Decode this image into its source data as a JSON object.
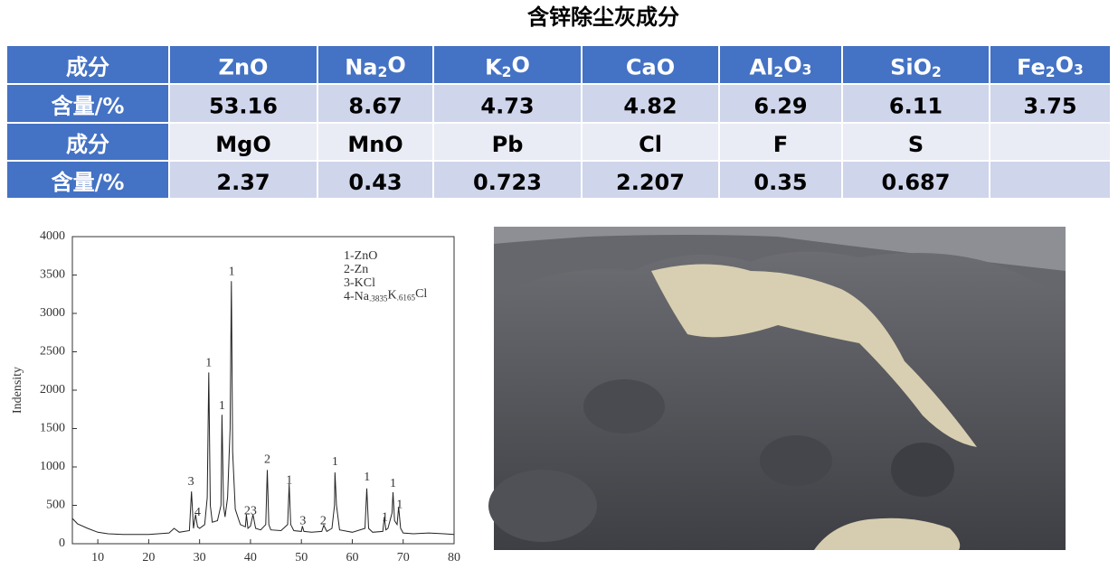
{
  "title": "含锌除尘灰成分",
  "table": {
    "rows": [
      [
        "成分",
        "ZnO",
        [
          "Na",
          "2",
          "O"
        ],
        [
          "K",
          "2",
          "O"
        ],
        "CaO",
        [
          "Al",
          "2",
          "O",
          "3",
          ""
        ],
        [
          "SiO",
          "2",
          ""
        ],
        [
          "Fe",
          "2",
          "O",
          "3",
          ""
        ]
      ],
      [
        "含量/%",
        "53.16",
        "8.67",
        "4.73",
        "4.82",
        "6.29",
        "6.11",
        "3.75"
      ],
      [
        "成分",
        "MgO",
        "MnO",
        "Pb",
        "Cl",
        "F",
        "S",
        null
      ],
      [
        "含量/%",
        "2.37",
        "0.43",
        "0.723",
        "2.207",
        "0.35",
        "0.687",
        null
      ]
    ]
  },
  "chart_data": {
    "type": "line",
    "y_label": "Indensity",
    "color": "#222222",
    "legend": [
      "1-ZnO",
      "2-Zn",
      "3-KCl",
      [
        "4-Na",
        ".3835",
        "K",
        ".6165",
        "Cl"
      ]
    ],
    "x": [
      5,
      6,
      8,
      10,
      12,
      15,
      20,
      24,
      25,
      26,
      28,
      28.4,
      28.8,
      29.2,
      29.6,
      30,
      31,
      31.5,
      31.8,
      32.1,
      32.5,
      33.5,
      34.2,
      34.4,
      34.7,
      35,
      35.5,
      36,
      36.25,
      36.5,
      37,
      38,
      39,
      39.2,
      39.5,
      40,
      40.5,
      41,
      42,
      43,
      43.3,
      43.6,
      44,
      46,
      47.3,
      47.6,
      47.9,
      48.5,
      50,
      50.2,
      50.5,
      52,
      54,
      54.4,
      55,
      56,
      56.5,
      56.6,
      56.9,
      57.5,
      60,
      62.5,
      62.85,
      63.2,
      64,
      66,
      66.3,
      66.6,
      67,
      67.8,
      68,
      68.3,
      68.8,
      69.1,
      69.5,
      70,
      72,
      75,
      78,
      80
    ],
    "values": [
      330,
      260,
      200,
      150,
      130,
      120,
      120,
      140,
      200,
      150,
      170,
      680,
      200,
      380,
      220,
      200,
      250,
      600,
      2230,
      500,
      280,
      300,
      500,
      1680,
      500,
      350,
      600,
      1500,
      3420,
      1200,
      450,
      250,
      220,
      380,
      200,
      230,
      380,
      200,
      180,
      250,
      960,
      250,
      180,
      170,
      250,
      780,
      250,
      170,
      160,
      230,
      160,
      150,
      160,
      240,
      160,
      200,
      500,
      930,
      500,
      180,
      150,
      200,
      720,
      200,
      150,
      160,
      350,
      180,
      200,
      400,
      670,
      300,
      250,
      480,
      200,
      140,
      130,
      140,
      130,
      120
    ],
    "peak_labels": [
      {
        "text": "3",
        "x": 28.3,
        "y": 800
      },
      {
        "text": "4",
        "x": 29.6,
        "y": 400
      },
      {
        "text": "1",
        "x": 31.8,
        "y": 2350
      },
      {
        "text": "1",
        "x": 34.4,
        "y": 1790
      },
      {
        "text": "1",
        "x": 36.3,
        "y": 3540
      },
      {
        "text": "23",
        "x": 40,
        "y": 420
      },
      {
        "text": "2",
        "x": 43.3,
        "y": 1090
      },
      {
        "text": "1",
        "x": 47.6,
        "y": 820
      },
      {
        "text": "3",
        "x": 50.3,
        "y": 290
      },
      {
        "text": "2",
        "x": 54.3,
        "y": 290
      },
      {
        "text": "1",
        "x": 56.6,
        "y": 1060
      },
      {
        "text": "1",
        "x": 62.9,
        "y": 860
      },
      {
        "text": "1",
        "x": 66.4,
        "y": 340
      },
      {
        "text": "1",
        "x": 68,
        "y": 780
      },
      {
        "text": "1",
        "x": 69.3,
        "y": 500
      }
    ],
    "xlim": [
      5,
      80
    ],
    "ylim": [
      0,
      4000
    ],
    "xticks": [
      10,
      20,
      30,
      40,
      50,
      60,
      70,
      80
    ],
    "yticks": [
      0,
      500,
      1000,
      1500,
      2000,
      2500,
      3000,
      3500,
      4000
    ]
  }
}
